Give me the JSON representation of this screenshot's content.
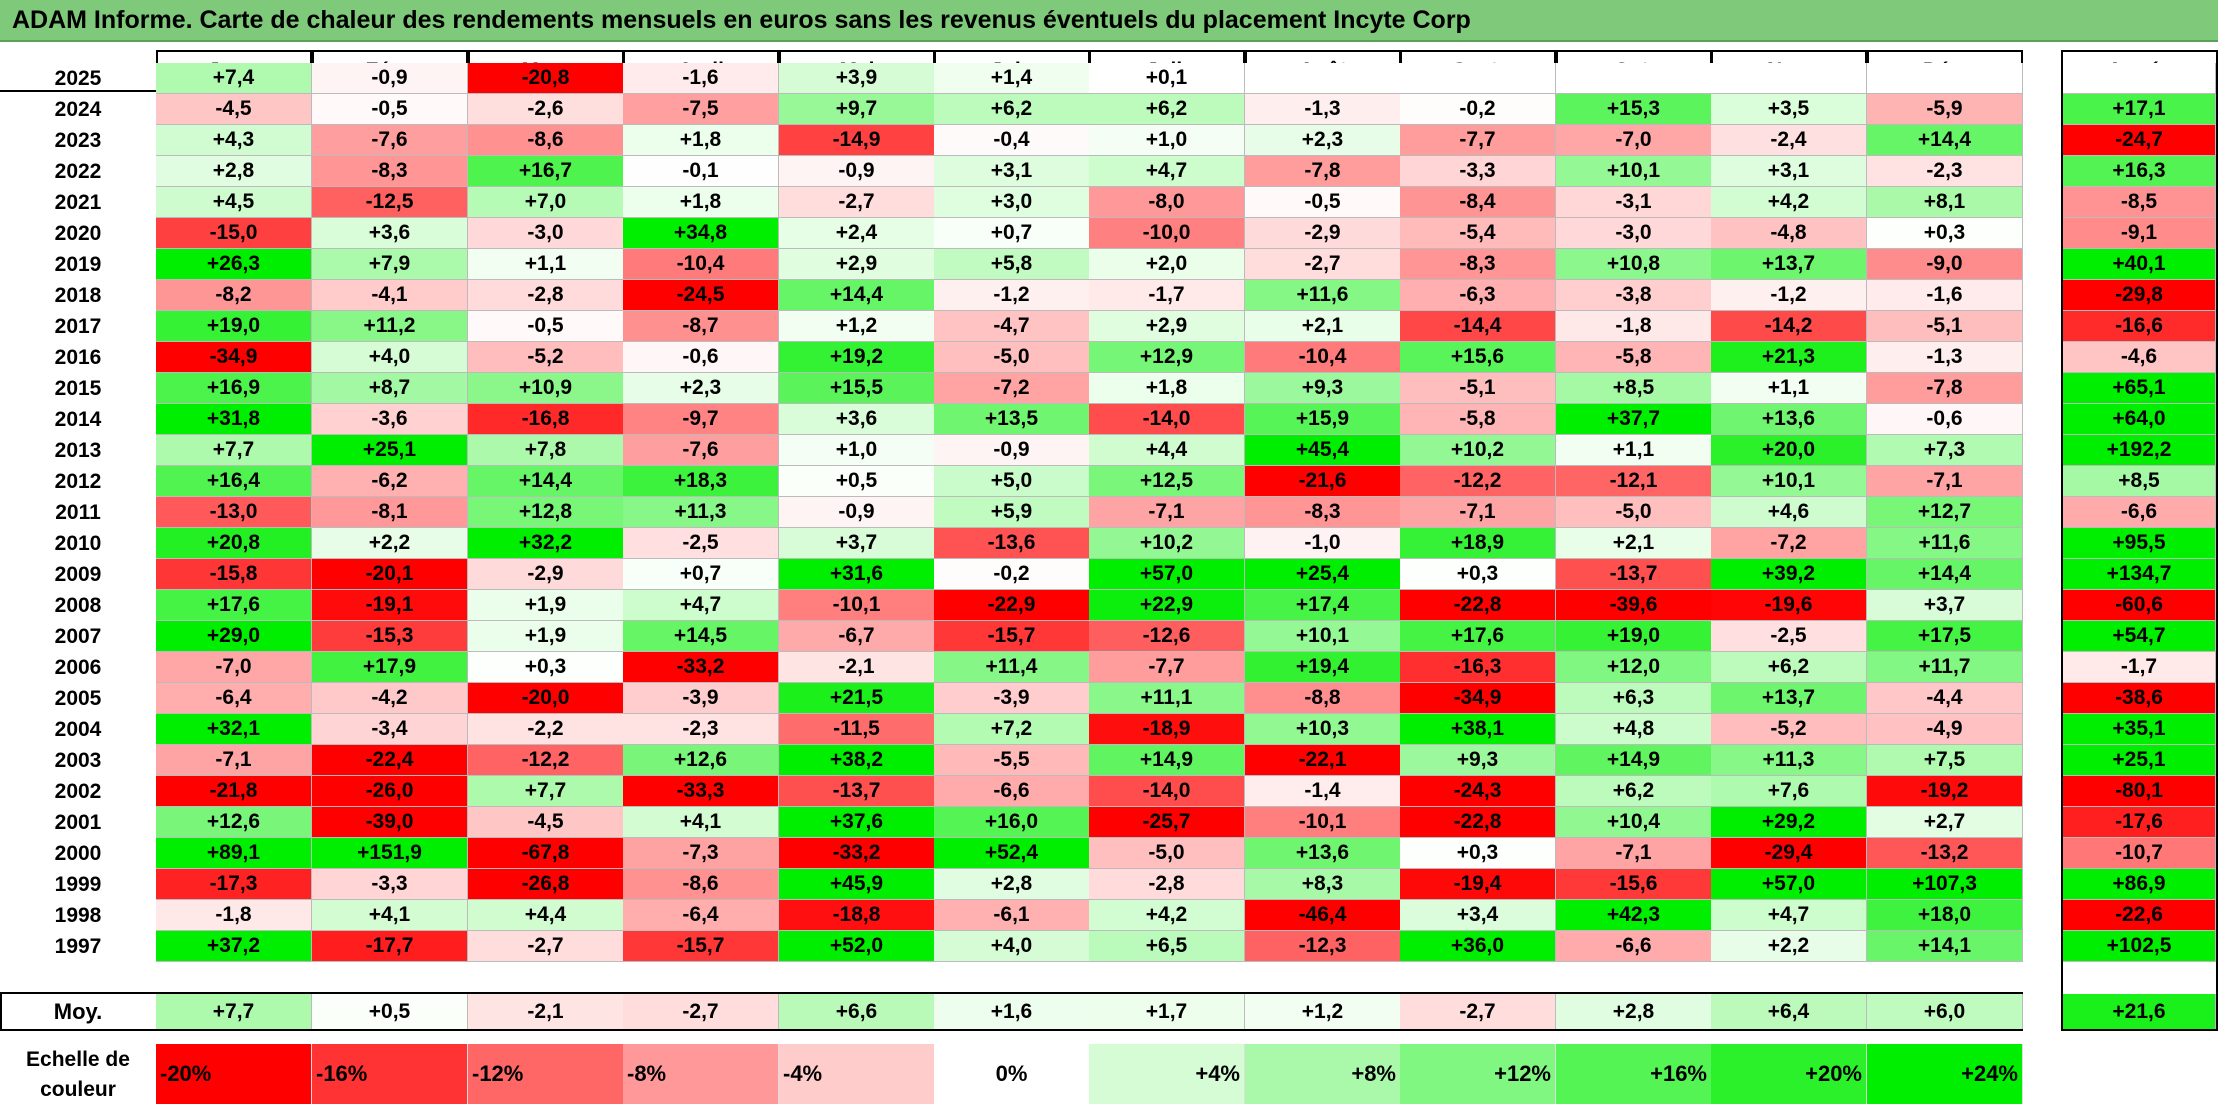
{
  "title": "ADAM Informe. Carte de chaleur des rendements mensuels en euros sans les revenus éventuels du placement Incyte Corp",
  "colors": {
    "title_bg": "#7fc97a",
    "neg_max": "#ff0000",
    "pos_max": "#00ee00",
    "neutral": "#ffffff"
  },
  "chart_data": {
    "type": "heatmap",
    "months": [
      "Janv.",
      "Févr.",
      "Mars",
      "Avril",
      "Mai",
      "Juin",
      "Juil.",
      "Août",
      "Sept.",
      "Oct.",
      "Nov.",
      "Déc."
    ],
    "year_header": "Année",
    "avg_label": "Moy.",
    "rows": [
      {
        "year": "2025",
        "months": [
          "+7,4",
          "-0,9",
          "-20,8",
          "-1,6",
          "+3,9",
          "+1,4",
          "+0,1",
          "",
          "",
          "",
          "",
          ""
        ],
        "annual": ""
      },
      {
        "year": "2024",
        "months": [
          "-4,5",
          "-0,5",
          "-2,6",
          "-7,5",
          "+9,7",
          "+6,2",
          "+6,2",
          "-1,3",
          "-0,2",
          "+15,3",
          "+3,5",
          "-5,9"
        ],
        "annual": "+17,1"
      },
      {
        "year": "2023",
        "months": [
          "+4,3",
          "-7,6",
          "-8,6",
          "+1,8",
          "-14,9",
          "-0,4",
          "+1,0",
          "+2,3",
          "-7,7",
          "-7,0",
          "-2,4",
          "+14,4"
        ],
        "annual": "-24,7"
      },
      {
        "year": "2022",
        "months": [
          "+2,8",
          "-8,3",
          "+16,7",
          "-0,1",
          "-0,9",
          "+3,1",
          "+4,7",
          "-7,8",
          "-3,3",
          "+10,1",
          "+3,1",
          "-2,3"
        ],
        "annual": "+16,3"
      },
      {
        "year": "2021",
        "months": [
          "+4,5",
          "-12,5",
          "+7,0",
          "+1,8",
          "-2,7",
          "+3,0",
          "-8,0",
          "-0,5",
          "-8,4",
          "-3,1",
          "+4,2",
          "+8,1"
        ],
        "annual": "-8,5"
      },
      {
        "year": "2020",
        "months": [
          "-15,0",
          "+3,6",
          "-3,0",
          "+34,8",
          "+2,4",
          "+0,7",
          "-10,0",
          "-2,9",
          "-5,4",
          "-3,0",
          "-4,8",
          "+0,3"
        ],
        "annual": "-9,1"
      },
      {
        "year": "2019",
        "months": [
          "+26,3",
          "+7,9",
          "+1,1",
          "-10,4",
          "+2,9",
          "+5,8",
          "+2,0",
          "-2,7",
          "-8,3",
          "+10,8",
          "+13,7",
          "-9,0"
        ],
        "annual": "+40,1"
      },
      {
        "year": "2018",
        "months": [
          "-8,2",
          "-4,1",
          "-2,8",
          "-24,5",
          "+14,4",
          "-1,2",
          "-1,7",
          "+11,6",
          "-6,3",
          "-3,8",
          "-1,2",
          "-1,6"
        ],
        "annual": "-29,8"
      },
      {
        "year": "2017",
        "months": [
          "+19,0",
          "+11,2",
          "-0,5",
          "-8,7",
          "+1,2",
          "-4,7",
          "+2,9",
          "+2,1",
          "-14,4",
          "-1,8",
          "-14,2",
          "-5,1"
        ],
        "annual": "-16,6"
      },
      {
        "year": "2016",
        "months": [
          "-34,9",
          "+4,0",
          "-5,2",
          "-0,6",
          "+19,2",
          "-5,0",
          "+12,9",
          "-10,4",
          "+15,6",
          "-5,8",
          "+21,3",
          "-1,3"
        ],
        "annual": "-4,6"
      },
      {
        "year": "2015",
        "months": [
          "+16,9",
          "+8,7",
          "+10,9",
          "+2,3",
          "+15,5",
          "-7,2",
          "+1,8",
          "+9,3",
          "-5,1",
          "+8,5",
          "+1,1",
          "-7,8"
        ],
        "annual": "+65,1"
      },
      {
        "year": "2014",
        "months": [
          "+31,8",
          "-3,6",
          "-16,8",
          "-9,7",
          "+3,6",
          "+13,5",
          "-14,0",
          "+15,9",
          "-5,8",
          "+37,7",
          "+13,6",
          "-0,6"
        ],
        "annual": "+64,0"
      },
      {
        "year": "2013",
        "months": [
          "+7,7",
          "+25,1",
          "+7,8",
          "-7,6",
          "+1,0",
          "-0,9",
          "+4,4",
          "+45,4",
          "+10,2",
          "+1,1",
          "+20,0",
          "+7,3"
        ],
        "annual": "+192,2"
      },
      {
        "year": "2012",
        "months": [
          "+16,4",
          "-6,2",
          "+14,4",
          "+18,3",
          "+0,5",
          "+5,0",
          "+12,5",
          "-21,6",
          "-12,2",
          "-12,1",
          "+10,1",
          "-7,1"
        ],
        "annual": "+8,5"
      },
      {
        "year": "2011",
        "months": [
          "-13,0",
          "-8,1",
          "+12,8",
          "+11,3",
          "-0,9",
          "+5,9",
          "-7,1",
          "-8,3",
          "-7,1",
          "-5,0",
          "+4,6",
          "+12,7"
        ],
        "annual": "-6,6"
      },
      {
        "year": "2010",
        "months": [
          "+20,8",
          "+2,2",
          "+32,2",
          "-2,5",
          "+3,7",
          "-13,6",
          "+10,2",
          "-1,0",
          "+18,9",
          "+2,1",
          "-7,2",
          "+11,6"
        ],
        "annual": "+95,5"
      },
      {
        "year": "2009",
        "months": [
          "-15,8",
          "-20,1",
          "-2,9",
          "+0,7",
          "+31,6",
          "-0,2",
          "+57,0",
          "+25,4",
          "+0,3",
          "-13,7",
          "+39,2",
          "+14,4"
        ],
        "annual": "+134,7"
      },
      {
        "year": "2008",
        "months": [
          "+17,6",
          "-19,1",
          "+1,9",
          "+4,7",
          "-10,1",
          "-22,9",
          "+22,9",
          "+17,4",
          "-22,8",
          "-39,6",
          "-19,6",
          "+3,7"
        ],
        "annual": "-60,6"
      },
      {
        "year": "2007",
        "months": [
          "+29,0",
          "-15,3",
          "+1,9",
          "+14,5",
          "-6,7",
          "-15,7",
          "-12,6",
          "+10,1",
          "+17,6",
          "+19,0",
          "-2,5",
          "+17,5"
        ],
        "annual": "+54,7"
      },
      {
        "year": "2006",
        "months": [
          "-7,0",
          "+17,9",
          "+0,3",
          "-33,2",
          "-2,1",
          "+11,4",
          "-7,7",
          "+19,4",
          "-16,3",
          "+12,0",
          "+6,2",
          "+11,7"
        ],
        "annual": "-1,7"
      },
      {
        "year": "2005",
        "months": [
          "-6,4",
          "-4,2",
          "-20,0",
          "-3,9",
          "+21,5",
          "-3,9",
          "+11,1",
          "-8,8",
          "-34,9",
          "+6,3",
          "+13,7",
          "-4,4"
        ],
        "annual": "-38,6"
      },
      {
        "year": "2004",
        "months": [
          "+32,1",
          "-3,4",
          "-2,2",
          "-2,3",
          "-11,5",
          "+7,2",
          "-18,9",
          "+10,3",
          "+38,1",
          "+4,8",
          "-5,2",
          "-4,9"
        ],
        "annual": "+35,1"
      },
      {
        "year": "2003",
        "months": [
          "-7,1",
          "-22,4",
          "-12,2",
          "+12,6",
          "+38,2",
          "-5,5",
          "+14,9",
          "-22,1",
          "+9,3",
          "+14,9",
          "+11,3",
          "+7,5"
        ],
        "annual": "+25,1"
      },
      {
        "year": "2002",
        "months": [
          "-21,8",
          "-26,0",
          "+7,7",
          "-33,3",
          "-13,7",
          "-6,6",
          "-14,0",
          "-1,4",
          "-24,3",
          "+6,2",
          "+7,6",
          "-19,2"
        ],
        "annual": "-80,1"
      },
      {
        "year": "2001",
        "months": [
          "+12,6",
          "-39,0",
          "-4,5",
          "+4,1",
          "+37,6",
          "+16,0",
          "-25,7",
          "-10,1",
          "-22,8",
          "+10,4",
          "+29,2",
          "+2,7"
        ],
        "annual": "-17,6"
      },
      {
        "year": "2000",
        "months": [
          "+89,1",
          "+151,9",
          "-67,8",
          "-7,3",
          "-33,2",
          "+52,4",
          "-5,0",
          "+13,6",
          "+0,3",
          "-7,1",
          "-29,4",
          "-13,2"
        ],
        "annual": "-10,7"
      },
      {
        "year": "1999",
        "months": [
          "-17,3",
          "-3,3",
          "-26,8",
          "-8,6",
          "+45,9",
          "+2,8",
          "-2,8",
          "+8,3",
          "-19,4",
          "-15,6",
          "+57,0",
          "+107,3"
        ],
        "annual": "+86,9"
      },
      {
        "year": "1998",
        "months": [
          "-1,8",
          "+4,1",
          "+4,4",
          "-6,4",
          "-18,8",
          "-6,1",
          "+4,2",
          "-46,4",
          "+3,4",
          "+42,3",
          "+4,7",
          "+18,0"
        ],
        "annual": "-22,6"
      },
      {
        "year": "1997",
        "months": [
          "+37,2",
          "-17,7",
          "-2,7",
          "-15,7",
          "+52,0",
          "+4,0",
          "+6,5",
          "-12,3",
          "+36,0",
          "-6,6",
          "+2,2",
          "+14,1"
        ],
        "annual": "+102,5"
      }
    ],
    "averages": {
      "months": [
        "+7,7",
        "+0,5",
        "-2,1",
        "-2,7",
        "+6,6",
        "+1,6",
        "+1,7",
        "+1,2",
        "-2,7",
        "+2,8",
        "+6,4",
        "+6,0"
      ],
      "annual": "+21,6"
    },
    "scale": {
      "label": "Echelle de couleur",
      "steps": [
        "-20%",
        "-16%",
        "-12%",
        "-8%",
        "-4%",
        "0%",
        "+4%",
        "+8%",
        "+12%",
        "+16%",
        "+20%",
        "+24%"
      ]
    }
  }
}
